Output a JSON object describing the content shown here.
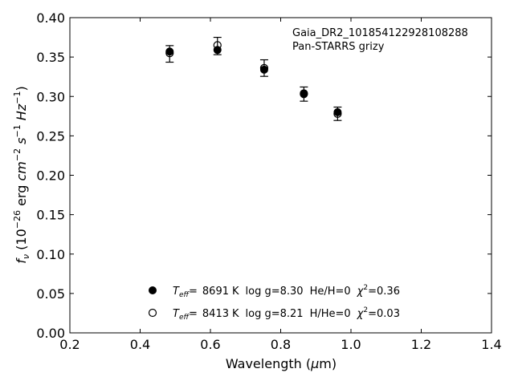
{
  "chart_data": {
    "type": "scatter",
    "annotation": {
      "line1": "Gaia_DR2_101854122928108288",
      "line2": "Pan-STARRS grizy"
    },
    "xlabel_parts": {
      "text": "Wavelength (",
      "mu": "μ",
      "unit": "m)"
    },
    "ylabel_parts": {
      "f": "f",
      "nu": "ν",
      "open": " (10",
      "exp1": "−26",
      "erg": " erg ",
      "cm": "cm",
      "exp2": "−2",
      "s": " s",
      "exp3": "−1",
      "hz": " Hz",
      "exp4": "−1",
      "close": ")"
    },
    "xlim": [
      0.2,
      1.4
    ],
    "ylim": [
      0.0,
      0.4
    ],
    "x_ticks": [
      "0.2",
      "0.4",
      "0.6",
      "0.8",
      "1.0",
      "1.2",
      "1.4"
    ],
    "y_ticks": [
      "0.00",
      "0.05",
      "0.10",
      "0.15",
      "0.20",
      "0.25",
      "0.30",
      "0.35",
      "0.40"
    ],
    "observed": {
      "x": [
        0.484,
        0.62,
        0.753,
        0.866,
        0.962
      ],
      "y": [
        0.354,
        0.364,
        0.336,
        0.303,
        0.278
      ],
      "yerr": [
        0.0105,
        0.011,
        0.0105,
        0.009,
        0.0085
      ]
    },
    "series": [
      {
        "marker": "filled",
        "teff_value": "8691",
        "logg": "log g=8.30",
        "comp": "He/H=0",
        "chi_value": "0.36",
        "x": [
          0.484,
          0.62,
          0.753,
          0.866,
          0.962
        ],
        "y": [
          0.357,
          0.359,
          0.334,
          0.304,
          0.28
        ]
      },
      {
        "marker": "open",
        "teff_value": "8413",
        "logg": "log g=8.21",
        "comp": "H/He=0",
        "chi_value": "0.03",
        "x": [
          0.484,
          0.62,
          0.753,
          0.866,
          0.962
        ],
        "y": [
          0.355,
          0.365,
          0.336,
          0.303,
          0.278
        ]
      }
    ],
    "legend_text": {
      "T": "T",
      "eff": "eff",
      "eq": "=",
      "k": "K",
      "chi": "χ",
      "chi_exp": "2",
      "chi_eq": "="
    },
    "legend_position": "lower-center"
  }
}
